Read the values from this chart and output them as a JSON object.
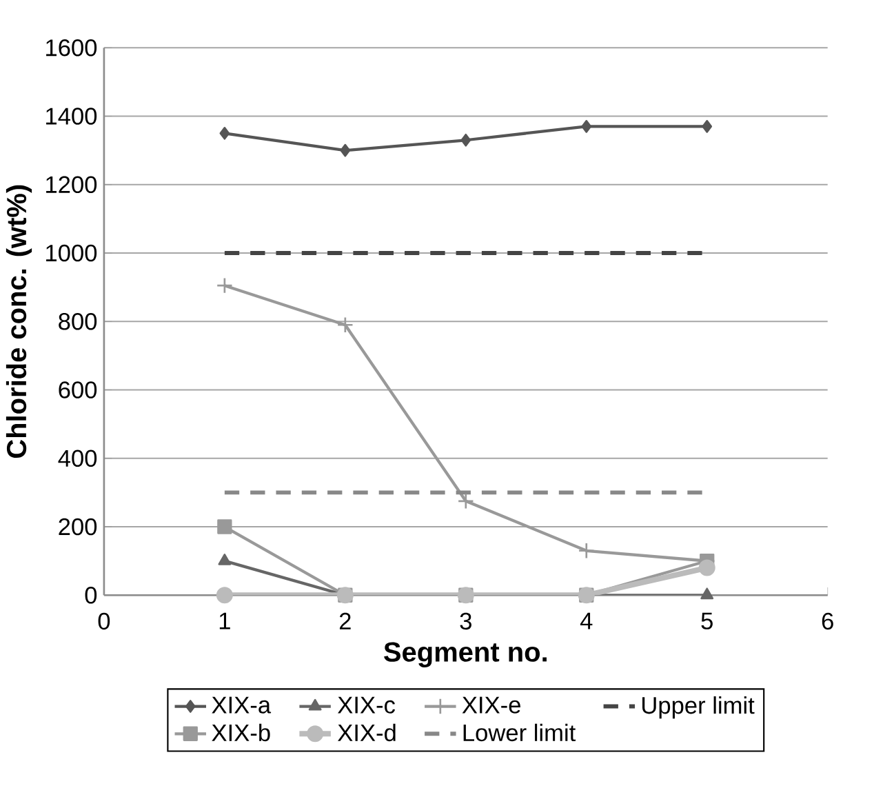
{
  "chart_data": {
    "type": "line",
    "xlabel": "Segment no.",
    "ylabel": "Chloride conc. (wt%)",
    "x": [
      1,
      2,
      3,
      4,
      5
    ],
    "xlim": [
      0,
      6
    ],
    "xticks": [
      0,
      1,
      2,
      3,
      4,
      5,
      6
    ],
    "ylim": [
      0,
      1600
    ],
    "yticks": [
      0,
      200,
      400,
      600,
      800,
      1000,
      1200,
      1400,
      1600
    ],
    "grid": "y",
    "legend": "bottom",
    "series": [
      {
        "name": "XIX-a",
        "color": "#555555",
        "marker": "diamond",
        "line_style": "solid",
        "values": [
          1350,
          1300,
          1330,
          1370,
          1370
        ]
      },
      {
        "name": "XIX-b",
        "color": "#999999",
        "marker": "square",
        "line_style": "solid",
        "values": [
          200,
          0,
          0,
          0,
          100
        ]
      },
      {
        "name": "XIX-c",
        "color": "#666666",
        "marker": "triangle",
        "line_style": "solid",
        "values": [
          100,
          0,
          0,
          0,
          0
        ]
      },
      {
        "name": "XIX-d",
        "color": "#bbbbbb",
        "marker": "circle",
        "line_style": "solid",
        "values": [
          0,
          0,
          0,
          0,
          80
        ]
      },
      {
        "name": "XIX-e",
        "color": "#999999",
        "marker": "cross",
        "line_style": "solid",
        "values": [
          905,
          790,
          275,
          130,
          100
        ]
      },
      {
        "name": "Lower limit",
        "color": "#888888",
        "marker": "none",
        "line_style": "dashed",
        "values": [
          300,
          300,
          300,
          300,
          300
        ]
      },
      {
        "name": "Upper limit",
        "color": "#444444",
        "marker": "none",
        "line_style": "dashed",
        "values": [
          1000,
          1000,
          1000,
          1000,
          1000
        ]
      }
    ]
  }
}
